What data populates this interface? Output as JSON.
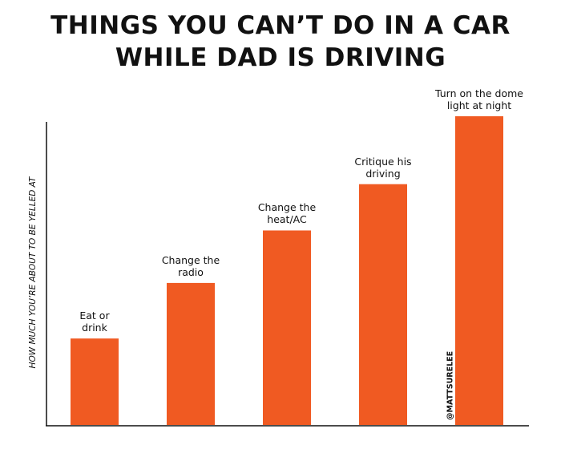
{
  "chart_data": {
    "type": "bar",
    "title": "THINGS YOU CAN’T DO IN A CAR\nWHILE DAD IS DRIVING",
    "y_label": "HOW MUCH YOU’RE ABOUT TO BE YELLED AT",
    "categories": [
      "Eat or\ndrink",
      "Change the\nradio",
      "Change the\nheat/AC",
      "Critique his\ndriving",
      "Turn on the dome\nlight at night"
    ],
    "values": [
      28,
      46,
      63,
      78,
      100
    ],
    "color": "#f05a22",
    "ylim": [
      0,
      100
    ],
    "annotation": "@MATTSURELEE"
  }
}
